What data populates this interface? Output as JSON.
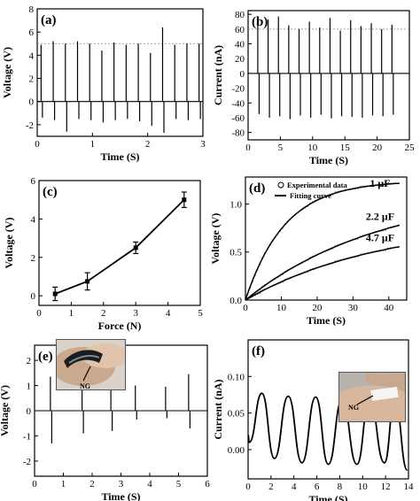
{
  "chart_data": [
    {
      "panel": "(a)",
      "type": "line",
      "xlabel": "Time (S)",
      "ylabel": "Voltage (V)",
      "xlim": [
        0,
        3
      ],
      "ylim": [
        -3,
        8
      ],
      "xticks": [
        "0",
        "1",
        "2",
        "3"
      ],
      "yticks": [
        "8",
        "6",
        "4",
        "2",
        "0",
        "-2"
      ],
      "reference_line": 5,
      "spikes": {
        "t": [
          0.07,
          0.29,
          0.51,
          0.73,
          0.95,
          1.17,
          1.39,
          1.61,
          1.83,
          2.05,
          2.27,
          2.49,
          2.71,
          2.93
        ],
        "pos": [
          4.9,
          5.2,
          5.0,
          5.2,
          5.0,
          4.4,
          5.1,
          4.9,
          5.0,
          4.2,
          6.4,
          4.9,
          5.0,
          5.0
        ],
        "neg": [
          -1.4,
          -1.6,
          -2.6,
          -1.5,
          -1.6,
          -1.8,
          -1.6,
          -1.5,
          -1.7,
          -2.1,
          -2.7,
          -1.5,
          -1.6,
          -1.5
        ]
      }
    },
    {
      "panel": "(b)",
      "type": "line",
      "xlabel": "Time (S)",
      "ylabel": "Current (nA)",
      "xlim": [
        0,
        25
      ],
      "ylim": [
        -90,
        85
      ],
      "xticks": [
        "0",
        "5",
        "10",
        "15",
        "20",
        "25"
      ],
      "yticks": [
        "80",
        "40",
        "0",
        "-40",
        "-80"
      ],
      "extra_ytick_labels": [
        "60",
        "20",
        "-20",
        "-60"
      ],
      "reference_line": 60,
      "spikes": {
        "t": [
          1.5,
          3.1,
          4.7,
          6.3,
          7.9,
          9.5,
          11.1,
          12.7,
          14.3,
          15.9,
          17.5,
          19.1,
          20.7,
          22.3
        ],
        "pos": [
          66,
          73,
          77,
          65,
          60,
          70,
          62,
          75,
          58,
          72,
          64,
          68,
          60,
          66
        ],
        "neg": [
          -55,
          -60,
          -58,
          -62,
          -57,
          -60,
          -56,
          -61,
          -58,
          -59,
          -60,
          -57,
          -58,
          -56
        ]
      }
    },
    {
      "panel": "(c)",
      "type": "line",
      "xlabel": "Force (N)",
      "ylabel": "Voltage (V)",
      "xlim": [
        0,
        5
      ],
      "ylim": [
        -0.5,
        6
      ],
      "xticks": [
        "0",
        "1",
        "2",
        "3",
        "4",
        "5"
      ],
      "yticks": [
        "6",
        "4",
        "2",
        "0"
      ],
      "x": [
        0.5,
        1.5,
        3.0,
        4.5
      ],
      "y": [
        0.1,
        0.75,
        2.5,
        5.0
      ],
      "yerr": [
        0.35,
        0.45,
        0.3,
        0.4
      ]
    },
    {
      "panel": "(d)",
      "type": "line",
      "xlabel": "Time (S)",
      "ylabel": "Voltage (V)",
      "xlim": [
        0,
        45
      ],
      "ylim": [
        0,
        1.28
      ],
      "xticks": [
        "0",
        "10",
        "20",
        "30",
        "40"
      ],
      "yticks": [
        "1.0",
        "0.5",
        "0.0"
      ],
      "legend": [
        "Experimental data",
        "Fitting curve"
      ],
      "legend_position": "top-left",
      "series": [
        {
          "name": "1 μF",
          "max": 1.24,
          "tau": 11.0
        },
        {
          "name": "2.2 μF",
          "max": 1.15,
          "tau": 38.0
        },
        {
          "name": "4.7 μF",
          "max": 0.82,
          "tau": 38.0
        }
      ],
      "x_end": 43
    },
    {
      "panel": "(e)",
      "type": "line",
      "xlabel": "Time (S)",
      "ylabel": "Voltage (V)",
      "xlim": [
        0,
        6
      ],
      "ylim": [
        -2.6,
        2.6
      ],
      "xticks": [
        "0",
        "1",
        "2",
        "3",
        "4",
        "5",
        "6"
      ],
      "yticks": [
        "2",
        "1",
        "0",
        "-1",
        "-2"
      ],
      "inset_label": "NG",
      "spikes": {
        "t": [
          0.55,
          1.65,
          2.65,
          3.5,
          4.55,
          5.35
        ],
        "pos": [
          1.35,
          0.85,
          1.35,
          1.0,
          0.95,
          1.45
        ],
        "neg": [
          -1.3,
          -0.9,
          -0.8,
          -0.35,
          -0.3,
          -0.7
        ]
      }
    },
    {
      "panel": "(f)",
      "type": "line",
      "xlabel": "Time (S)",
      "ylabel": "Current (nA)",
      "xlim": [
        0,
        14
      ],
      "ylim": [
        -0.04,
        0.15
      ],
      "xticks": [
        "0",
        "2",
        "4",
        "6",
        "8",
        "10",
        "12",
        "14"
      ],
      "yticks": [
        "0.10",
        "0.05",
        "0.00"
      ],
      "inset_label": "NG",
      "wave": {
        "peaks_t": [
          1.2,
          3.5,
          5.9,
          8.2,
          10.6,
          12.8
        ],
        "peaks_v": [
          0.077,
          0.073,
          0.072,
          0.068,
          0.068,
          0.068
        ],
        "troughs_t": [
          0.1,
          2.3,
          4.7,
          7.0,
          9.5,
          11.9,
          13.9
        ],
        "troughs_v": [
          0.01,
          -0.012,
          -0.018,
          -0.02,
          -0.02,
          -0.018,
          -0.028
        ]
      }
    }
  ],
  "labels": {
    "ng_e": "NG",
    "ng_f": "NG"
  }
}
